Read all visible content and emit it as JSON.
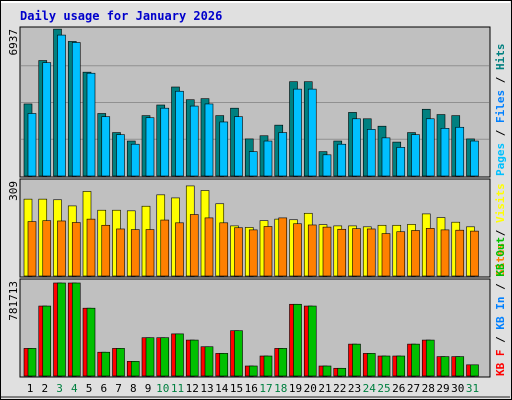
{
  "title": "Daily usage for January 2026",
  "colors": {
    "frame_bg": "#E0E0E0",
    "plot_bg": "#C0C0C0",
    "title": "#0000CC",
    "pages": "#008080",
    "files": "#00C0FF",
    "hits": "#008080",
    "visits": "#FFFF00",
    "sites": "#FF8000",
    "kb_f": "#FF0000",
    "kb_in": "#0080FF",
    "kb_out": "#00C000",
    "weekend_day": "#008040"
  },
  "chart_data": [
    {
      "type": "bar",
      "name": "top",
      "y_axis_max_label": "6937",
      "ylim": [
        0,
        6937
      ],
      "side_legend": [
        {
          "text": "Pages",
          "color": "#00C0FF"
        },
        {
          "text": "Files",
          "color": "#0080FF"
        },
        {
          "text": "Hits",
          "color": "#008080"
        }
      ],
      "series": [
        {
          "name": "Hits",
          "color": "#008080",
          "values": [
            3400,
            5450,
            6930,
            6350,
            4900,
            2950,
            2050,
            1650,
            2850,
            3350,
            4200,
            3600,
            3650,
            2850,
            3200,
            1750,
            1900,
            2400,
            4450,
            4450,
            1150,
            1650,
            3000,
            2700,
            2350,
            1600,
            2050,
            3150,
            2900,
            2850,
            1750
          ]
        },
        {
          "name": "Files",
          "color": "#00C0FF",
          "values": [
            2950,
            5350,
            6650,
            6300,
            4850,
            2800,
            1950,
            1500,
            2750,
            3200,
            4000,
            3300,
            3400,
            2550,
            2800,
            1150,
            1650,
            2050,
            4100,
            4100,
            1000,
            1500,
            2700,
            2200,
            1800,
            1350,
            1950,
            2700,
            2250,
            2300,
            1650
          ]
        }
      ]
    },
    {
      "type": "bar",
      "name": "middle",
      "y_axis_max_label": "309",
      "ylim": [
        0,
        309
      ],
      "side_legend": [
        {
          "text": "Visits",
          "color": "#FFFF00"
        }
      ],
      "series": [
        {
          "name": "Visits",
          "color": "#FFFF00",
          "values": [
            250,
            250,
            248,
            228,
            275,
            214,
            214,
            212,
            227,
            264,
            254,
            293,
            278,
            235,
            163,
            158,
            180,
            185,
            183,
            204,
            167,
            163,
            163,
            160,
            165,
            165,
            168,
            202,
            190,
            175,
            160
          ]
        },
        {
          "name": "Sites",
          "color": "#FF8000",
          "values": [
            177,
            180,
            179,
            174,
            185,
            165,
            153,
            151,
            151,
            182,
            173,
            200,
            189,
            173,
            157,
            150,
            161,
            189,
            170,
            166,
            159,
            152,
            154,
            153,
            138,
            144,
            148,
            155,
            150,
            149,
            146
          ]
        }
      ]
    },
    {
      "type": "bar",
      "name": "bottom",
      "y_axis_max_label": "781713",
      "ylim": [
        0,
        781713
      ],
      "side_legend": [
        {
          "text": "KB F",
          "color": "#FF0000"
        },
        {
          "text": "KB In",
          "color": "#0080FF"
        },
        {
          "text": "KB Out",
          "color": "#00C000"
        }
      ],
      "series": [
        {
          "name": "KB F",
          "color": "#FF0000",
          "values": [
            232000,
            588000,
            781713,
            781713,
            570000,
            200000,
            232000,
            123000,
            322000,
            322000,
            354000,
            302000,
            246000,
            190000,
            381000,
            84000,
            168000,
            232000,
            603000,
            588000,
            84000,
            65000,
            268000,
            190000,
            168000,
            168000,
            268000,
            302000,
            163000,
            163000,
            94000
          ]
        },
        {
          "name": "KB Out",
          "color": "#00C000",
          "values": [
            232000,
            588000,
            781713,
            781713,
            570000,
            200000,
            232000,
            123000,
            322000,
            322000,
            354000,
            302000,
            246000,
            190000,
            381000,
            84000,
            168000,
            232000,
            603000,
            588000,
            84000,
            65000,
            268000,
            190000,
            168000,
            168000,
            268000,
            302000,
            163000,
            163000,
            94000
          ]
        }
      ]
    }
  ],
  "x_axis": {
    "labels": [
      "1",
      "2",
      "3",
      "4",
      "5",
      "6",
      "7",
      "8",
      "9",
      "10",
      "11",
      "12",
      "13",
      "14",
      "15",
      "16",
      "17",
      "18",
      "19",
      "20",
      "21",
      "22",
      "23",
      "24",
      "25",
      "26",
      "27",
      "28",
      "29",
      "30",
      "31"
    ],
    "weekend_days": [
      3,
      4,
      10,
      11,
      17,
      18,
      24,
      25,
      31
    ]
  }
}
